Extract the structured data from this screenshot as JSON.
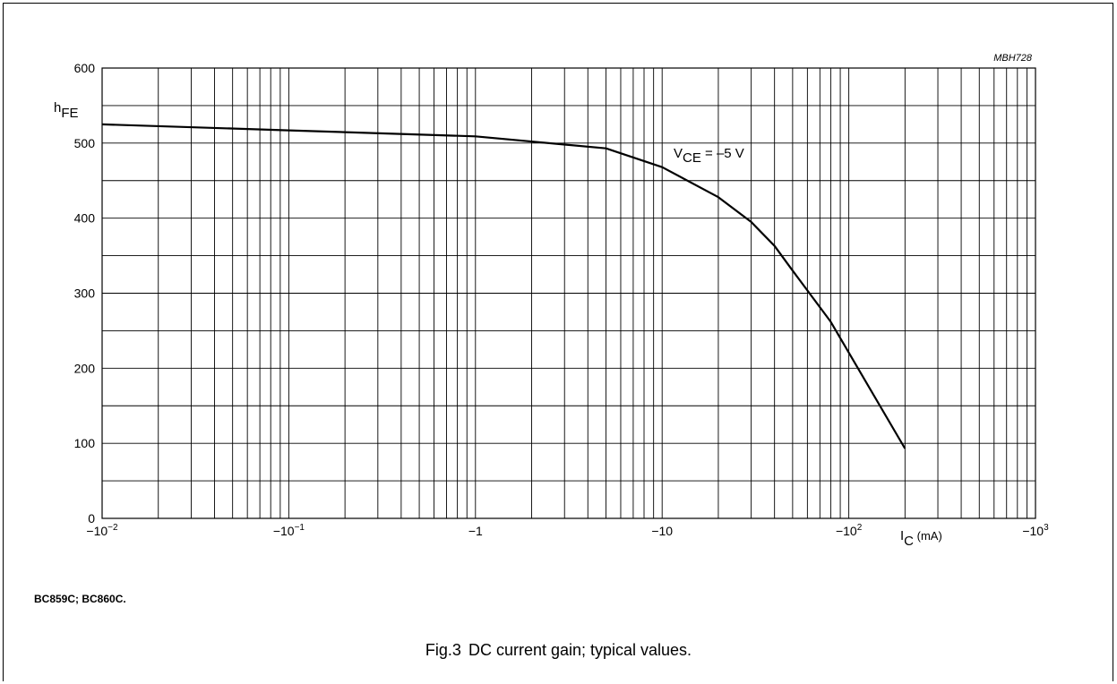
{
  "chart_data": {
    "type": "line",
    "figure_code": "MBH728",
    "ylabel": {
      "main": "h",
      "sub": "FE"
    },
    "xlabel": {
      "main": "I",
      "sub": "C",
      "unit": " (mA)"
    },
    "ylim": [
      0,
      600
    ],
    "yticks": [
      0,
      100,
      200,
      300,
      400,
      500,
      600
    ],
    "x_scale": "log",
    "xlim": [
      -0.01,
      -1000
    ],
    "xticks": [
      {
        "value": -0.01,
        "base": "−10",
        "exp": "−2"
      },
      {
        "value": -0.1,
        "base": "−10",
        "exp": "−1"
      },
      {
        "value": -1,
        "base": "−1",
        "exp": ""
      },
      {
        "value": -10,
        "base": "−10",
        "exp": ""
      },
      {
        "value": -100,
        "base": "−10",
        "exp": "2"
      },
      {
        "value": -1000,
        "base": "−10",
        "exp": "3"
      }
    ],
    "grid": true,
    "series": [
      {
        "label": {
          "main": "V",
          "sub": "CE",
          "rest": " = –5 V"
        },
        "x": [
          -0.01,
          -0.1,
          -1,
          -5,
          -10,
          -20,
          -30,
          -40,
          -50,
          -80,
          -200
        ],
        "y": [
          525,
          517,
          509,
          493,
          468,
          428,
          395,
          363,
          330,
          262,
          93
        ]
      }
    ]
  },
  "device": "BC859C; BC860C.",
  "caption": {
    "number": "Fig.3",
    "text": "DC current gain; typical values."
  }
}
